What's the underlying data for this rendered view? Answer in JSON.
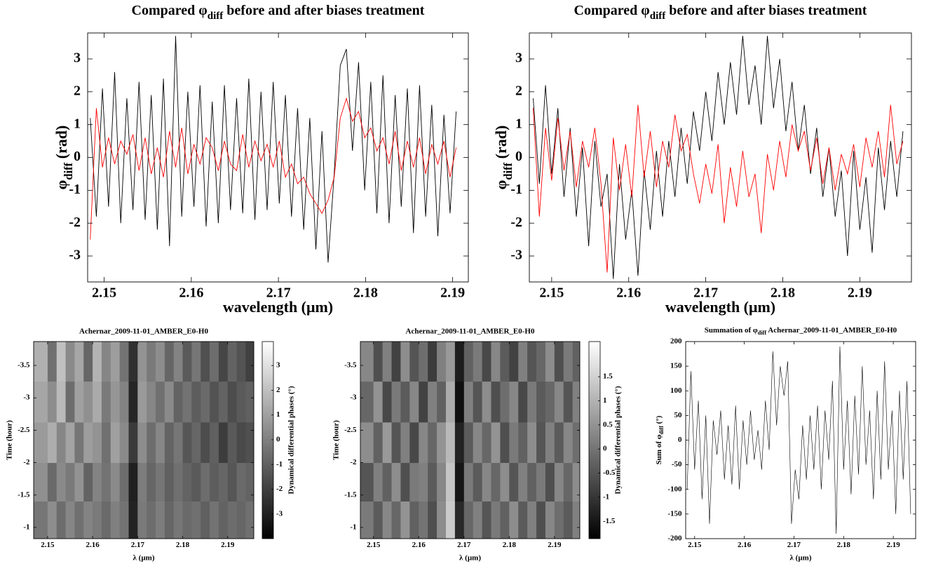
{
  "chart_data": [
    {
      "type": "line",
      "title": [
        "Compared φ",
        "diff",
        " before and after biases treatment"
      ],
      "xlabel": "wavelength (μm)",
      "ylabel": [
        "φ",
        "diff",
        " (rad)"
      ],
      "x": [
        2.1484,
        2.1491,
        2.1498,
        2.1505,
        2.1512,
        2.1519,
        2.1526,
        2.1533,
        2.154,
        2.1547,
        2.1554,
        2.1561,
        2.1568,
        2.1575,
        2.1582,
        2.1589,
        2.1596,
        2.1603,
        2.161,
        2.1617,
        2.1624,
        2.1631,
        2.1638,
        2.1645,
        2.1652,
        2.1659,
        2.1666,
        2.1673,
        2.168,
        2.1687,
        2.1694,
        2.1701,
        2.1708,
        2.1715,
        2.1722,
        2.1729,
        2.1736,
        2.1743,
        2.175,
        2.1757,
        2.1764,
        2.1771,
        2.1778,
        2.1785,
        2.1792,
        2.1799,
        2.1806,
        2.1813,
        2.182,
        2.1827,
        2.1834,
        2.1841,
        2.1848,
        2.1855,
        2.1862,
        2.1869,
        2.1876,
        2.1883,
        2.189,
        2.1897,
        2.1904
      ],
      "series": [
        {
          "color": "#000000",
          "values": [
            1.2,
            -1.8,
            2.1,
            -1.5,
            2.6,
            -2.0,
            1.8,
            -1.6,
            2.3,
            -1.9,
            1.9,
            -2.2,
            2.4,
            -2.7,
            3.7,
            -1.8,
            2.0,
            -1.5,
            2.2,
            -2.1,
            1.7,
            -2.0,
            2.2,
            -1.6,
            1.8,
            -1.7,
            2.4,
            -1.9,
            2.0,
            -1.6,
            2.3,
            -1.4,
            1.9,
            -1.8,
            1.5,
            -2.2,
            1.2,
            -2.8,
            0.8,
            -3.2,
            -0.5,
            2.8,
            3.3,
            0.2,
            2.9,
            -1.0,
            2.3,
            -1.7,
            2.5,
            -2.0,
            1.9,
            -1.5,
            2.1,
            -2.3,
            2.2,
            -1.8,
            1.6,
            -2.4,
            1.3,
            -1.7,
            1.4
          ]
        },
        {
          "color": "#ff0000",
          "values": [
            -2.5,
            1.5,
            -0.3,
            0.6,
            -0.2,
            0.5,
            0.1,
            0.7,
            -0.4,
            0.6,
            -0.5,
            0.3,
            -0.6,
            0.8,
            -0.3,
            0.9,
            -0.5,
            0.4,
            -0.2,
            0.6,
            0.3,
            -0.4,
            0.5,
            -0.2,
            -0.4,
            0.7,
            -0.3,
            0.5,
            -0.1,
            0.4,
            -0.3,
            0.5,
            -0.6,
            -0.2,
            -0.8,
            -0.6,
            -1.1,
            -1.4,
            -1.7,
            -1.3,
            -0.6,
            1.2,
            1.8,
            1.1,
            1.4,
            0.6,
            0.9,
            0.2,
            0.6,
            -0.2,
            0.8,
            -0.4,
            0.5,
            -0.3,
            0.6,
            -0.5,
            0.4,
            -0.2,
            0.5,
            -0.6,
            0.3
          ]
        }
      ],
      "xlim": [
        2.1481,
        2.1918
      ],
      "ylim": [
        -3.79,
        3.79
      ],
      "xticks": [
        2.15,
        2.16,
        2.17,
        2.18,
        2.19
      ],
      "yticks": [
        -3,
        -2,
        -1,
        0,
        1,
        2,
        3
      ]
    },
    {
      "type": "line",
      "title": [
        "Compared φ",
        "diff",
        " before and after biases treatment"
      ],
      "xlabel": "wavelength (μm)",
      "ylabel": [
        "φ",
        "diff",
        " (rad)"
      ],
      "x": [
        2.1476,
        2.1484,
        2.1492,
        2.15,
        2.1508,
        2.1516,
        2.1524,
        2.1532,
        2.154,
        2.1548,
        2.1556,
        2.1564,
        2.1572,
        2.158,
        2.1588,
        2.1596,
        2.1604,
        2.1612,
        2.162,
        2.1628,
        2.1636,
        2.1644,
        2.1652,
        2.166,
        2.1668,
        2.1676,
        2.1684,
        2.1692,
        2.17,
        2.1708,
        2.1716,
        2.1724,
        2.1732,
        2.174,
        2.1748,
        2.1756,
        2.1764,
        2.1772,
        2.178,
        2.1788,
        2.1796,
        2.1804,
        2.1812,
        2.182,
        2.1828,
        2.1836,
        2.1844,
        2.1852,
        2.186,
        2.1868,
        2.1876,
        2.1884,
        2.1892,
        2.19,
        2.1908,
        2.1916,
        2.1924,
        2.1932,
        2.194,
        2.1948,
        2.1956
      ],
      "series": [
        {
          "color": "#000000",
          "values": [
            1.8,
            -0.8,
            2.2,
            -0.5,
            1.5,
            -1.2,
            0.9,
            -1.8,
            0.3,
            -2.7,
            0.5,
            -1.5,
            -0.5,
            -3.7,
            -0.2,
            -2.5,
            -1.0,
            -3.6,
            -0.4,
            -2.2,
            0.2,
            -1.8,
            0.5,
            -1.2,
            0.9,
            -0.8,
            1.4,
            0.2,
            2.0,
            0.5,
            2.6,
            1.0,
            2.9,
            1.3,
            3.7,
            1.6,
            2.8,
            1.0,
            3.7,
            1.5,
            3.0,
            0.8,
            2.3,
            0.2,
            1.6,
            -0.5,
            0.9,
            -1.2,
            0.3,
            -1.8,
            -0.4,
            -3.0,
            0.2,
            -2.2,
            -0.6,
            -2.9,
            0.3,
            -1.6,
            0.5,
            -1.2,
            0.8
          ]
        },
        {
          "color": "#ff0000",
          "values": [
            1.5,
            -1.8,
            0.9,
            -0.7,
            1.2,
            -0.4,
            0.8,
            -0.9,
            0.5,
            -0.3,
            0.9,
            -0.8,
            -3.5,
            0.6,
            -1.0,
            0.4,
            -1.2,
            1.6,
            -0.6,
            0.8,
            -0.9,
            0.5,
            -0.3,
            1.3,
            0.2,
            0.7,
            -0.5,
            -1.4,
            -0.2,
            -1.1,
            0.4,
            -2.0,
            -0.3,
            -1.5,
            0.2,
            -1.2,
            -0.5,
            -2.3,
            0.1,
            -1.0,
            0.5,
            -0.6,
            1.0,
            0.2,
            0.8,
            -0.4,
            0.6,
            -0.8,
            0.3,
            -1.0,
            0.1,
            -0.5,
            0.4,
            -0.9,
            0.6,
            -0.3,
            0.8,
            -0.6,
            1.6,
            -0.2,
            0.5
          ]
        }
      ],
      "xlim": [
        2.1471,
        2.1967
      ],
      "ylim": [
        -3.79,
        3.79
      ],
      "xticks": [
        2.15,
        2.16,
        2.17,
        2.18,
        2.19
      ],
      "yticks": [
        -3,
        -2,
        -1,
        0,
        1,
        2,
        3
      ]
    },
    {
      "type": "heatmap",
      "title": "Achernar_2009-11-01_AMBER_E0-H0",
      "xlabel": "λ (µm)",
      "ylabel": "Time (hour)",
      "clabel": "Dynamical differential phases (°)",
      "colormap": "gray",
      "x": [
        2.149,
        2.151,
        2.153,
        2.155,
        2.157,
        2.159,
        2.161,
        2.163,
        2.165,
        2.167,
        2.169,
        2.171,
        2.173,
        2.175,
        2.177,
        2.179,
        2.181,
        2.183,
        2.185,
        2.187,
        2.189,
        2.191,
        2.193,
        2.195
      ],
      "y": [
        -3.56,
        -2.94,
        -2.3,
        -1.69,
        -1.11
      ],
      "values": [
        [
          1.5,
          -0.5,
          2.0,
          0.3,
          1.2,
          -0.8,
          1.6,
          0.2,
          0.9,
          -0.4,
          -2.5,
          0.6,
          -0.2,
          0.4,
          -0.8,
          0.1,
          -1.2,
          -0.3,
          -1.5,
          -0.6,
          -1.8,
          -0.9,
          -1.4,
          -2.0
        ],
        [
          1.2,
          0.4,
          1.8,
          -0.6,
          1.0,
          0.5,
          1.3,
          -0.2,
          0.7,
          0.1,
          -2.8,
          0.8,
          0.2,
          -0.5,
          0.3,
          -0.9,
          -0.4,
          -1.1,
          -0.7,
          -1.4,
          -0.9,
          -1.6,
          -1.2,
          -1.0
        ],
        [
          0.8,
          1.4,
          0.2,
          1.1,
          -0.3,
          0.9,
          0.6,
          -0.5,
          1.0,
          0.3,
          -2.2,
          0.4,
          -0.6,
          0.2,
          -0.9,
          -0.3,
          -1.3,
          -0.8,
          -1.6,
          -1.0,
          -2.1,
          -1.2,
          -1.7,
          -1.5
        ],
        [
          0.5,
          -0.7,
          0.3,
          -0.2,
          0.6,
          -0.9,
          0.1,
          -0.4,
          0.3,
          -0.6,
          -3.0,
          -0.1,
          -0.8,
          -0.3,
          -1.0,
          -0.5,
          -0.9,
          -1.2,
          -0.6,
          -1.1,
          -0.8,
          -1.3,
          -0.7,
          -0.9
        ],
        [
          -0.3,
          0.4,
          -0.6,
          0.2,
          -0.5,
          0.1,
          -0.2,
          -0.7,
          0.0,
          -0.4,
          -2.9,
          -0.2,
          -0.6,
          -0.1,
          -0.8,
          -0.3,
          -0.7,
          -0.5,
          -1.0,
          -0.4,
          -0.9,
          -0.6,
          -0.8,
          -0.5
        ]
      ],
      "xlim": [
        2.1469,
        2.1958
      ],
      "ylim": [
        -3.868,
        -0.827
      ],
      "y_inverted": true,
      "xticks": [
        2.15,
        2.16,
        2.17,
        2.18,
        2.19
      ],
      "yticks": [
        -3.5,
        -3,
        -2.5,
        -2,
        -1.5,
        -1
      ],
      "clim": [
        -4.0,
        3.97
      ],
      "cticks": [
        -3,
        -2,
        -1,
        0,
        1,
        2,
        3
      ]
    },
    {
      "type": "heatmap",
      "title": "Achernar_2009-11-01_AMBER_E0-H0",
      "xlabel": "λ (µm)",
      "ylabel": "Time (hour)",
      "clabel": "Dynamical differential phases (°)",
      "colormap": "gray",
      "x": [
        2.149,
        2.151,
        2.153,
        2.155,
        2.157,
        2.159,
        2.161,
        2.163,
        2.165,
        2.167,
        2.169,
        2.171,
        2.173,
        2.175,
        2.177,
        2.179,
        2.181,
        2.183,
        2.185,
        2.187,
        2.189,
        2.191,
        2.193,
        2.195
      ],
      "y": [
        -3.56,
        -2.94,
        -2.3,
        -1.69,
        -1.11
      ],
      "values": [
        [
          0.3,
          -0.6,
          0.2,
          -0.8,
          0.4,
          -0.5,
          -0.1,
          -0.9,
          0.2,
          0.6,
          -1.4,
          -0.3,
          0.1,
          -0.7,
          0.3,
          -0.4,
          -0.8,
          0.2,
          -0.5,
          -0.2,
          0.4,
          -0.6,
          0.1,
          -0.3
        ],
        [
          -0.2,
          0.5,
          -0.7,
          0.1,
          -0.4,
          0.3,
          -0.8,
          0.2,
          -0.3,
          0.9,
          -1.6,
          0.2,
          -0.5,
          0.4,
          -0.6,
          -0.1,
          0.3,
          -0.7,
          0.1,
          -0.4,
          -0.2,
          0.3,
          -0.5,
          0.2
        ],
        [
          0.4,
          -0.3,
          0.6,
          -0.5,
          0.2,
          -0.7,
          0.3,
          -0.2,
          0.5,
          1.1,
          -1.3,
          -0.4,
          0.3,
          -0.2,
          0.5,
          -0.6,
          0.1,
          -0.3,
          0.4,
          -0.5,
          0.2,
          -0.4,
          0.3,
          -0.1
        ],
        [
          -0.5,
          0.2,
          -0.3,
          0.4,
          -0.6,
          0.1,
          0.2,
          -0.4,
          0.3,
          1.3,
          -1.5,
          0.1,
          -0.4,
          0.3,
          -0.2,
          0.4,
          -0.5,
          0.2,
          -0.3,
          0.1,
          -0.6,
          0.3,
          -0.2,
          0.4
        ],
        [
          0.1,
          -0.4,
          0.3,
          -0.2,
          0.5,
          -0.3,
          0.0,
          -0.6,
          0.4,
          1.4,
          -1.2,
          -0.2,
          0.2,
          -0.5,
          0.1,
          -0.3,
          0.4,
          -0.4,
          0.2,
          -0.6,
          0.3,
          -0.1,
          -0.4,
          0.2
        ]
      ],
      "xlim": [
        2.1471,
        2.1956
      ],
      "ylim": [
        -3.868,
        -0.827
      ],
      "y_inverted": true,
      "xticks": [
        2.15,
        2.16,
        2.17,
        2.18,
        2.19
      ],
      "yticks": [
        -3.5,
        -3,
        -2.5,
        -2,
        -1.5,
        -1
      ],
      "clim": [
        -1.86,
        2.23
      ],
      "cticks": [
        -1.5,
        -1,
        -0.5,
        0,
        0.5,
        1,
        1.5
      ]
    },
    {
      "type": "line",
      "title": [
        "Summation of φ",
        "diff",
        " Achernar_2009-11-01_AMBER_E0-H0"
      ],
      "xlabel": "λ (µm)",
      "ylabel": [
        "Sum of φ",
        "diff",
        " (°)"
      ],
      "x": [
        2.1485,
        2.14925,
        2.15,
        2.15075,
        2.1515,
        2.15225,
        2.153,
        2.15375,
        2.1545,
        2.15525,
        2.156,
        2.15675,
        2.1575,
        2.15825,
        2.159,
        2.15975,
        2.1605,
        2.16125,
        2.162,
        2.16275,
        2.1635,
        2.16425,
        2.165,
        2.16575,
        2.1665,
        2.16725,
        2.168,
        2.16875,
        2.1695,
        2.17025,
        2.171,
        2.17175,
        2.1725,
        2.17325,
        2.174,
        2.17475,
        2.1755,
        2.17625,
        2.177,
        2.17775,
        2.1785,
        2.17925,
        2.18,
        2.18075,
        2.1815,
        2.18225,
        2.183,
        2.18375,
        2.1845,
        2.18525,
        2.186,
        2.18675,
        2.1875,
        2.18825,
        2.189,
        2.18975,
        2.1905,
        2.19125,
        2.192,
        2.19275,
        2.1935
      ],
      "series": [
        {
          "color": "#000000",
          "values": [
            -100,
            140,
            -60,
            80,
            -120,
            50,
            -170,
            40,
            -30,
            60,
            -80,
            30,
            -90,
            70,
            -100,
            40,
            -50,
            60,
            -40,
            20,
            -60,
            80,
            -20,
            180,
            30,
            150,
            90,
            160,
            -170,
            -60,
            -120,
            30,
            -80,
            50,
            -60,
            70,
            -100,
            60,
            -40,
            120,
            -190,
            190,
            -60,
            80,
            -110,
            90,
            -70,
            150,
            -50,
            60,
            -120,
            100,
            -80,
            160,
            -60,
            60,
            -150,
            100,
            -80,
            120,
            -150
          ]
        }
      ],
      "xlim": [
        2.1482,
        2.1945
      ],
      "ylim": [
        -200,
        200
      ],
      "xticks": [
        2.15,
        2.16,
        2.17,
        2.18,
        2.19
      ],
      "yticks": [
        -200,
        -150,
        -100,
        -50,
        0,
        50,
        100,
        150,
        200
      ]
    }
  ]
}
